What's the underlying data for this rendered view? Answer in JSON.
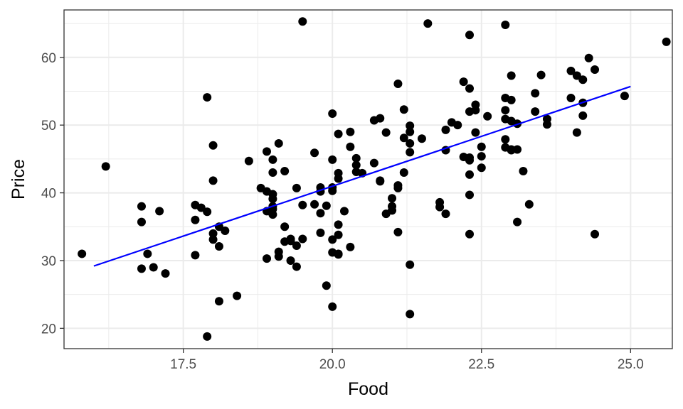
{
  "chart_data": {
    "type": "scatter",
    "title": "",
    "xlabel": "Food",
    "ylabel": "Price",
    "xlim": [
      15.5,
      25.7
    ],
    "ylim": [
      17.0,
      67.0
    ],
    "x_ticks": [
      17.5,
      20.0,
      22.5,
      25.0
    ],
    "x_tick_labels": [
      "17.5",
      "20.0",
      "22.5",
      "25.0"
    ],
    "y_ticks": [
      20,
      30,
      40,
      50,
      60
    ],
    "y_tick_labels": [
      "20",
      "30",
      "40",
      "50",
      "60"
    ],
    "grid": true,
    "legend": "none",
    "colors": {
      "points": "#000000",
      "fit_line": "#0000ff",
      "grid": "#ebebeb",
      "panel_border": "#333333"
    },
    "series": [
      {
        "kind": "points",
        "points": [
          [
            15.8,
            31.0
          ],
          [
            16.2,
            43.9
          ],
          [
            16.8,
            28.8
          ],
          [
            16.8,
            35.7
          ],
          [
            16.8,
            38.0
          ],
          [
            16.9,
            31.0
          ],
          [
            17.0,
            29.0
          ],
          [
            17.1,
            37.3
          ],
          [
            17.2,
            28.1
          ],
          [
            17.7,
            30.8
          ],
          [
            17.7,
            38.2
          ],
          [
            17.7,
            36.0
          ],
          [
            17.8,
            37.8
          ],
          [
            17.9,
            54.1
          ],
          [
            17.9,
            37.2
          ],
          [
            17.9,
            18.8
          ],
          [
            18.0,
            47.0
          ],
          [
            18.0,
            41.8
          ],
          [
            18.0,
            34.0
          ],
          [
            18.0,
            33.1
          ],
          [
            18.1,
            35.0
          ],
          [
            18.1,
            32.1
          ],
          [
            18.1,
            24.0
          ],
          [
            18.2,
            34.4
          ],
          [
            18.4,
            24.8
          ],
          [
            18.6,
            44.7
          ],
          [
            18.8,
            40.7
          ],
          [
            18.9,
            37.3
          ],
          [
            18.9,
            40.2
          ],
          [
            18.9,
            46.1
          ],
          [
            18.9,
            30.3
          ],
          [
            19.0,
            44.9
          ],
          [
            19.0,
            36.8
          ],
          [
            19.0,
            43.0
          ],
          [
            19.0,
            38.0
          ],
          [
            19.0,
            39.1
          ],
          [
            19.0,
            39.8
          ],
          [
            19.0,
            37.6
          ],
          [
            19.1,
            47.3
          ],
          [
            19.1,
            31.3
          ],
          [
            19.1,
            30.6
          ],
          [
            19.2,
            43.2
          ],
          [
            19.2,
            35.0
          ],
          [
            19.2,
            32.8
          ],
          [
            19.3,
            33.2
          ],
          [
            19.3,
            32.9
          ],
          [
            19.3,
            30.0
          ],
          [
            19.4,
            29.1
          ],
          [
            19.4,
            40.7
          ],
          [
            19.4,
            32.2
          ],
          [
            19.5,
            38.2
          ],
          [
            19.5,
            65.3
          ],
          [
            19.5,
            33.2
          ],
          [
            19.7,
            38.3
          ],
          [
            19.7,
            45.9
          ],
          [
            19.8,
            34.1
          ],
          [
            19.8,
            40.8
          ],
          [
            19.8,
            40.2
          ],
          [
            19.8,
            37.0
          ],
          [
            19.9,
            26.3
          ],
          [
            19.9,
            38.1
          ],
          [
            20.0,
            23.2
          ],
          [
            20.0,
            33.1
          ],
          [
            20.0,
            40.8
          ],
          [
            20.0,
            40.3
          ],
          [
            20.0,
            31.2
          ],
          [
            20.0,
            51.7
          ],
          [
            20.0,
            44.9
          ],
          [
            20.1,
            42.1
          ],
          [
            20.1,
            48.7
          ],
          [
            20.1,
            35.3
          ],
          [
            20.1,
            33.8
          ],
          [
            20.1,
            31.0
          ],
          [
            20.1,
            30.9
          ],
          [
            20.1,
            42.9
          ],
          [
            20.2,
            37.3
          ],
          [
            20.3,
            46.8
          ],
          [
            20.3,
            49.0
          ],
          [
            20.3,
            32.0
          ],
          [
            20.4,
            45.1
          ],
          [
            20.4,
            44.1
          ],
          [
            20.4,
            43.1
          ],
          [
            20.5,
            42.9
          ],
          [
            20.7,
            44.4
          ],
          [
            20.7,
            50.7
          ],
          [
            20.8,
            51.0
          ],
          [
            20.8,
            41.8
          ],
          [
            20.8,
            41.7
          ],
          [
            20.9,
            36.9
          ],
          [
            20.9,
            48.9
          ],
          [
            21.0,
            39.2
          ],
          [
            21.0,
            38.0
          ],
          [
            21.0,
            37.4
          ],
          [
            21.1,
            40.7
          ],
          [
            21.1,
            41.1
          ],
          [
            21.1,
            56.1
          ],
          [
            21.1,
            34.2
          ],
          [
            21.2,
            52.3
          ],
          [
            21.2,
            43.0
          ],
          [
            21.2,
            48.1
          ],
          [
            21.3,
            49.9
          ],
          [
            21.3,
            49.0
          ],
          [
            21.3,
            47.3
          ],
          [
            21.3,
            46.0
          ],
          [
            21.3,
            29.4
          ],
          [
            21.3,
            22.1
          ],
          [
            21.5,
            48.0
          ],
          [
            21.6,
            65.0
          ],
          [
            21.8,
            38.6
          ],
          [
            21.8,
            37.9
          ],
          [
            21.9,
            36.9
          ],
          [
            21.9,
            49.3
          ],
          [
            21.9,
            46.3
          ],
          [
            22.0,
            50.4
          ],
          [
            22.1,
            50.0
          ],
          [
            22.2,
            56.4
          ],
          [
            22.2,
            45.3
          ],
          [
            22.3,
            55.4
          ],
          [
            22.3,
            63.3
          ],
          [
            22.3,
            44.8
          ],
          [
            22.3,
            45.2
          ],
          [
            22.3,
            42.7
          ],
          [
            22.3,
            39.7
          ],
          [
            22.3,
            33.9
          ],
          [
            22.3,
            52.0
          ],
          [
            22.4,
            53.0
          ],
          [
            22.4,
            52.2
          ],
          [
            22.4,
            48.9
          ],
          [
            22.5,
            45.4
          ],
          [
            22.5,
            46.8
          ],
          [
            22.5,
            43.7
          ],
          [
            22.6,
            51.3
          ],
          [
            22.9,
            54.0
          ],
          [
            22.9,
            64.8
          ],
          [
            22.9,
            52.2
          ],
          [
            22.9,
            50.9
          ],
          [
            22.9,
            47.9
          ],
          [
            22.9,
            46.7
          ],
          [
            23.0,
            50.6
          ],
          [
            23.0,
            46.3
          ],
          [
            23.0,
            46.4
          ],
          [
            23.0,
            57.3
          ],
          [
            23.0,
            53.7
          ],
          [
            23.1,
            50.2
          ],
          [
            23.1,
            35.7
          ],
          [
            23.1,
            46.4
          ],
          [
            23.2,
            43.2
          ],
          [
            23.3,
            38.3
          ],
          [
            23.4,
            52.0
          ],
          [
            23.4,
            54.7
          ],
          [
            23.5,
            57.4
          ],
          [
            23.6,
            50.1
          ],
          [
            23.6,
            50.9
          ],
          [
            24.0,
            58.0
          ],
          [
            24.0,
            54.0
          ],
          [
            24.1,
            57.3
          ],
          [
            24.1,
            48.9
          ],
          [
            24.2,
            51.4
          ],
          [
            24.2,
            56.7
          ],
          [
            24.2,
            53.3
          ],
          [
            24.3,
            59.9
          ],
          [
            24.4,
            58.2
          ],
          [
            24.4,
            33.9
          ],
          [
            24.9,
            54.3
          ],
          [
            25.6,
            62.3
          ]
        ]
      },
      {
        "kind": "line",
        "points": [
          [
            16.0,
            29.2
          ],
          [
            25.0,
            55.7
          ]
        ]
      }
    ]
  }
}
